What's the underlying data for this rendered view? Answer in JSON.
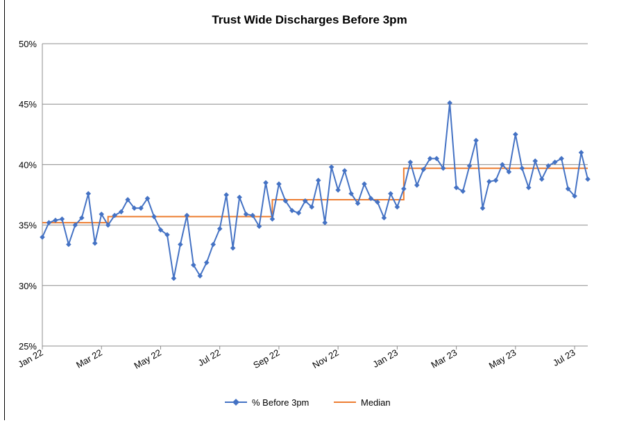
{
  "chart_data": {
    "type": "line",
    "title": "Trust Wide Discharges Before 3pm",
    "xlabel": "",
    "ylabel": "",
    "ylim": [
      0.25,
      0.5
    ],
    "yticks": [
      "25%",
      "30%",
      "35%",
      "40%",
      "45%",
      "50%"
    ],
    "xtick_labels": [
      "Jan 22",
      "Mar 22",
      "May 22",
      "Jul 22",
      "Sep 22",
      "Nov 22",
      "Jan 23",
      "Mar 23",
      "May 23",
      "Jul 23"
    ],
    "grid": true,
    "legend_position": "bottom",
    "series": [
      {
        "name": "% Before 3pm",
        "color": "#4472C4",
        "marker": "diamond",
        "values": [
          0.34,
          0.352,
          0.354,
          0.355,
          0.334,
          0.35,
          0.356,
          0.376,
          0.335,
          0.359,
          0.35,
          0.358,
          0.361,
          0.371,
          0.364,
          0.364,
          0.372,
          0.357,
          0.346,
          0.342,
          0.306,
          0.334,
          0.358,
          0.317,
          0.308,
          0.319,
          0.334,
          0.347,
          0.375,
          0.331,
          0.373,
          0.359,
          0.358,
          0.349,
          0.385,
          0.355,
          0.384,
          0.37,
          0.362,
          0.36,
          0.37,
          0.365,
          0.387,
          0.352,
          0.398,
          0.379,
          0.395,
          0.376,
          0.368,
          0.384,
          0.372,
          0.369,
          0.356,
          0.376,
          0.365,
          0.38,
          0.402,
          0.383,
          0.396,
          0.405,
          0.405,
          0.397,
          0.451,
          0.381,
          0.378,
          0.399,
          0.42,
          0.364,
          0.386,
          0.387,
          0.4,
          0.394,
          0.425,
          0.397,
          0.381,
          0.403,
          0.388,
          0.399,
          0.402,
          0.405,
          0.38,
          0.374,
          0.41,
          0.388
        ]
      },
      {
        "name": "Median",
        "color": "#ED7D31",
        "marker": "none",
        "values": [
          0.352,
          0.352,
          0.352,
          0.352,
          0.352,
          0.352,
          0.352,
          0.352,
          0.352,
          0.352,
          0.352,
          0.357,
          0.357,
          0.357,
          0.357,
          0.357,
          0.357,
          0.357,
          0.357,
          0.357,
          0.357,
          0.357,
          0.357,
          0.357,
          0.357,
          0.357,
          0.357,
          0.357,
          0.357,
          0.357,
          0.357,
          0.357,
          0.357,
          0.357,
          0.357,
          0.357,
          0.371,
          0.371,
          0.371,
          0.371,
          0.371,
          0.371,
          0.371,
          0.371,
          0.371,
          0.371,
          0.371,
          0.371,
          0.371,
          0.371,
          0.371,
          0.371,
          0.371,
          0.371,
          0.371,
          0.371,
          0.397,
          0.397,
          0.397,
          0.397,
          0.397,
          0.397,
          0.397,
          0.397,
          0.397,
          0.397,
          0.397,
          0.397,
          0.397,
          0.397,
          0.397,
          0.397,
          0.397,
          0.397,
          0.397,
          0.397,
          0.397,
          0.397,
          0.397,
          0.397,
          0.397,
          0.397,
          0.397,
          0.397
        ]
      }
    ]
  }
}
